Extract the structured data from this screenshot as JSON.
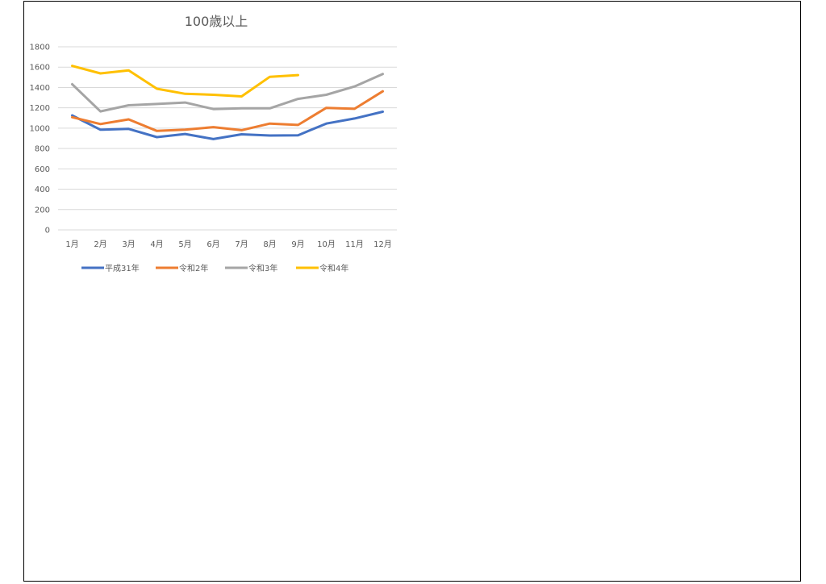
{
  "chart_data": {
    "type": "line",
    "title": "100歳以上",
    "categories": [
      "1月",
      "2月",
      "3月",
      "4月",
      "5月",
      "6月",
      "7月",
      "8月",
      "9月",
      "10月",
      "11月",
      "12月"
    ],
    "ylim": [
      0,
      1800
    ],
    "yticks": [
      0,
      200,
      400,
      600,
      800,
      1000,
      1200,
      1400,
      1600,
      1800
    ],
    "grid": true,
    "legend_position": "bottom",
    "series": [
      {
        "name": "平成31年",
        "color": "#4472C4",
        "values": [
          1125,
          985,
          993,
          912,
          943,
          893,
          940,
          928,
          930,
          1045,
          1095,
          1162
        ]
      },
      {
        "name": "令和2年",
        "color": "#ED7D31",
        "values": [
          1108,
          1040,
          1086,
          973,
          985,
          1010,
          980,
          1045,
          1032,
          1200,
          1190,
          1362
        ]
      },
      {
        "name": "令和3年",
        "color": "#A5A5A5",
        "values": [
          1432,
          1165,
          1225,
          1238,
          1252,
          1188,
          1195,
          1195,
          1288,
          1328,
          1410,
          1533
        ]
      },
      {
        "name": "令和4年",
        "color": "#FFC000",
        "values": [
          1612,
          1538,
          1568,
          1388,
          1338,
          1328,
          1312,
          1505,
          1522,
          null,
          null,
          null
        ]
      }
    ]
  }
}
